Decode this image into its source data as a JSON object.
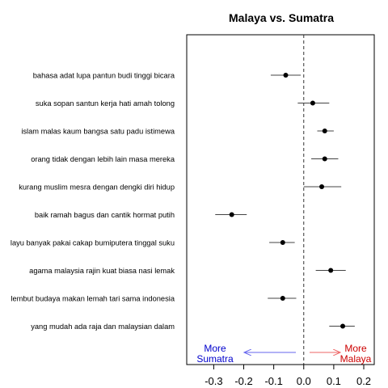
{
  "chart_data": {
    "type": "scatter",
    "title": "Malaya vs. Sumatra",
    "xlabel": "",
    "ylabel": "",
    "xlim": [
      -0.39,
      0.235
    ],
    "x_ticks": [
      -0.3,
      -0.2,
      -0.1,
      0.0,
      0.1,
      0.2
    ],
    "x_tick_labels": [
      "-0.3",
      "-0.2",
      "-0.1",
      "0.0",
      "0.1",
      "0.2"
    ],
    "reference_line_x": 0,
    "categories": [
      "bahasa adat lupa pantun budi tinggi bicara",
      "suka sopan santun kerja hati amah tolong",
      "islam malas kaum bangsa satu padu istimewa",
      "orang tidak dengan lebih lain masa mereka",
      "kurang muslim mesra dengan dengki diri hidup",
      "baik ramah bagus dan cantik hormat putih",
      "layu banyak pakai cakap bumiputera tinggal suku",
      "agama malaysia rajin kuat biasa nasi lemak",
      "lembut budaya makan lemah tari sama indonesia",
      "yang mudah ada raja dan malaysian dalam"
    ],
    "series": [
      {
        "values": [
          -0.06,
          0.03,
          0.07,
          0.07,
          0.06,
          -0.24,
          -0.07,
          0.09,
          -0.07,
          0.13
        ],
        "lower": [
          -0.11,
          -0.02,
          0.045,
          0.025,
          0.0,
          -0.295,
          -0.115,
          0.04,
          -0.12,
          0.085
        ],
        "upper": [
          -0.01,
          0.085,
          0.1,
          0.115,
          0.125,
          -0.19,
          -0.03,
          0.14,
          -0.025,
          0.17
        ]
      }
    ],
    "annotations": [
      {
        "lines": [
          "More",
          "Sumatra"
        ],
        "color": "#0000cc",
        "arrow_color": "#6666ee",
        "direction": "left"
      },
      {
        "lines": [
          "More",
          "Malaya"
        ],
        "color": "#cc0000",
        "arrow_color": "#ee6666",
        "direction": "right"
      }
    ]
  }
}
